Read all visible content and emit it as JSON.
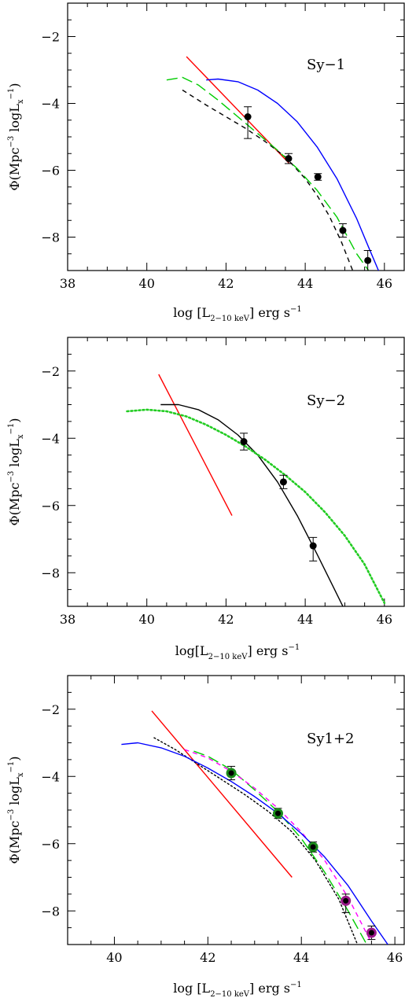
{
  "chart_data": [
    {
      "type": "line",
      "panel_label": "Sy−1",
      "xlabel": {
        "pre": "log [L",
        "sub": "2−10 keV",
        "post": "] erg s",
        "sup": "−1"
      },
      "ylabel": {
        "a": "Φ(Mpc",
        "a_sup": "−3",
        "b": " logL",
        "b_sub": "x",
        "c_sup": "−1",
        "d": ")"
      },
      "xlim": [
        38,
        46.5
      ],
      "ylim": [
        -9,
        -1
      ],
      "xticks": [
        38,
        40,
        42,
        44,
        46
      ],
      "xtick_labels": [
        "38",
        "40",
        "42",
        "44",
        "46"
      ],
      "yticks": [
        -2,
        -4,
        -6,
        -8
      ],
      "ytick_labels": [
        "−2",
        "−4",
        "−6",
        "−8"
      ],
      "data_points": [
        {
          "x": 42.55,
          "y": -4.4,
          "err_up": 0.3,
          "err_down": 0.65
        },
        {
          "x": 43.58,
          "y": -5.65,
          "err_up": 0.15,
          "err_down": 0.15
        },
        {
          "x": 44.32,
          "y": -6.2,
          "err_up": 0.1,
          "err_down": 0.1
        },
        {
          "x": 44.95,
          "y": -7.8,
          "err_up": 0.2,
          "err_down": 0.2
        },
        {
          "x": 45.58,
          "y": -8.7,
          "err_up": 0.3,
          "err_down": 0.3
        }
      ],
      "curves": [
        {
          "color": "#ff0000",
          "style": "solid",
          "x": [
            41.0,
            43.6
          ],
          "y": [
            -2.6,
            -5.8
          ]
        },
        {
          "color": "#000000",
          "style": "dashed",
          "x": [
            40.9,
            41.5,
            42.0,
            42.5,
            43.0,
            43.5,
            44.0,
            44.3,
            44.6,
            44.9,
            45.2
          ],
          "y": [
            -3.6,
            -4.05,
            -4.4,
            -4.75,
            -5.15,
            -5.6,
            -6.25,
            -6.75,
            -7.35,
            -8.1,
            -9.0
          ]
        },
        {
          "color": "#00cc00",
          "style": "longdash",
          "x": [
            40.5,
            40.9,
            41.3,
            41.8,
            42.3,
            42.8,
            43.3,
            43.8,
            44.3,
            44.8,
            45.3,
            45.6
          ],
          "y": [
            -3.3,
            -3.22,
            -3.45,
            -3.9,
            -4.4,
            -4.9,
            -5.4,
            -5.95,
            -6.6,
            -7.4,
            -8.5,
            -9.0
          ]
        },
        {
          "color": "#0000ff",
          "style": "solid",
          "x": [
            41.5,
            41.8,
            42.3,
            42.8,
            43.3,
            43.8,
            44.3,
            44.8,
            45.3,
            45.6,
            45.85
          ],
          "y": [
            -3.3,
            -3.27,
            -3.35,
            -3.6,
            -4.0,
            -4.55,
            -5.3,
            -6.25,
            -7.45,
            -8.3,
            -9.0
          ]
        }
      ]
    },
    {
      "type": "line",
      "panel_label": "Sy−2",
      "xlabel": {
        "pre": "log[L",
        "sub": "2−10 keV",
        "post": "] erg s",
        "sup": "−1"
      },
      "ylabel": {
        "a": "Φ(Mpc",
        "a_sup": "−3",
        "b": " logL",
        "b_sub": "x",
        "c_sup": "−1",
        "d": ")"
      },
      "xlim": [
        38,
        46.5
      ],
      "ylim": [
        -9,
        -1
      ],
      "xticks": [
        38,
        40,
        42,
        44,
        46
      ],
      "xtick_labels": [
        "38",
        "40",
        "42",
        "44",
        "46"
      ],
      "yticks": [
        -2,
        -4,
        -6,
        -8
      ],
      "ytick_labels": [
        "−2",
        "−4",
        "−6",
        "−8"
      ],
      "data_points": [
        {
          "x": 42.45,
          "y": -4.1,
          "err_up": 0.25,
          "err_down": 0.25
        },
        {
          "x": 43.45,
          "y": -5.3,
          "err_up": 0.2,
          "err_down": 0.2
        },
        {
          "x": 44.2,
          "y": -7.2,
          "err_up": 0.25,
          "err_down": 0.45
        }
      ],
      "curves": [
        {
          "color": "#ff0000",
          "style": "solid",
          "x": [
            40.3,
            42.15
          ],
          "y": [
            -2.1,
            -6.3
          ]
        },
        {
          "color": "#000000",
          "style": "solid",
          "x": [
            40.35,
            40.8,
            41.3,
            41.8,
            42.3,
            42.8,
            43.3,
            43.8,
            44.3,
            44.7,
            44.95
          ],
          "y": [
            -3.0,
            -3.0,
            -3.15,
            -3.45,
            -3.9,
            -4.5,
            -5.3,
            -6.3,
            -7.45,
            -8.4,
            -9.0
          ]
        },
        {
          "color": "#22cc22",
          "style": "dotted",
          "x": [
            39.5,
            40.0,
            40.5,
            41.0,
            41.5,
            42.0,
            42.5,
            43.0,
            43.5,
            44.0,
            44.5,
            45.0,
            45.5,
            46.0
          ],
          "y": [
            -3.2,
            -3.15,
            -3.2,
            -3.35,
            -3.6,
            -3.9,
            -4.25,
            -4.65,
            -5.1,
            -5.6,
            -6.2,
            -6.9,
            -7.75,
            -8.9
          ]
        }
      ]
    },
    {
      "type": "line",
      "panel_label": "Sy1+2",
      "xlabel": {
        "pre": "log [L",
        "sub": "2−10 keV",
        "post": "] erg s",
        "sup": "−1"
      },
      "ylabel": {
        "a": "Φ(Mpc",
        "a_sup": "−3",
        "b": " logL",
        "b_sub": "x",
        "c_sup": "−1",
        "d": ")"
      },
      "xlim": [
        39,
        46.2
      ],
      "ylim": [
        -9,
        -1
      ],
      "xticks": [
        40,
        42,
        44,
        46
      ],
      "xtick_labels": [
        "40",
        "42",
        "44",
        "46"
      ],
      "yticks": [
        -2,
        -4,
        -6,
        -8
      ],
      "ytick_labels": [
        "−2",
        "−4",
        "−6",
        "−8"
      ],
      "data_points": [
        {
          "x": 42.5,
          "y": -3.9,
          "err_up": 0.2,
          "err_down": 0.2,
          "fill": "#1a8a1a"
        },
        {
          "x": 43.5,
          "y": -5.1,
          "err_up": 0.15,
          "err_down": 0.15,
          "fill": "#1a8a1a"
        },
        {
          "x": 44.25,
          "y": -6.1,
          "err_up": 0.15,
          "err_down": 0.15,
          "fill": "#1a8a1a"
        },
        {
          "x": 44.95,
          "y": -7.7,
          "err_up": 0.2,
          "err_down": 0.35,
          "fill": "#9b1a8a"
        },
        {
          "x": 45.5,
          "y": -8.65,
          "err_up": 0.2,
          "err_down": 0.2,
          "fill": "#9b1a8a"
        }
      ],
      "curves": [
        {
          "color": "#ff0000",
          "style": "solid",
          "x": [
            40.8,
            43.8
          ],
          "y": [
            -2.05,
            -7.0
          ]
        },
        {
          "color": "#000000",
          "style": "dotted",
          "x": [
            40.85,
            41.3,
            41.8,
            42.3,
            42.8,
            43.3,
            43.8,
            44.3,
            44.8,
            45.2
          ],
          "y": [
            -2.85,
            -3.2,
            -3.65,
            -4.1,
            -4.55,
            -5.05,
            -5.65,
            -6.5,
            -7.65,
            -9.0
          ]
        },
        {
          "color": "#00cc00",
          "style": "longdash",
          "x": [
            41.7,
            42.0,
            42.5,
            43.0,
            43.5,
            44.0,
            44.5,
            45.0,
            45.4
          ],
          "y": [
            -3.25,
            -3.4,
            -3.8,
            -4.4,
            -5.05,
            -5.85,
            -6.85,
            -8.0,
            -9.0
          ]
        },
        {
          "color": "#ff00ff",
          "style": "dashed",
          "x": [
            41.5,
            42.0,
            42.5,
            43.0,
            43.5,
            44.0,
            44.5,
            45.0,
            45.5
          ],
          "y": [
            -3.2,
            -3.45,
            -3.85,
            -4.35,
            -4.95,
            -5.65,
            -6.5,
            -7.6,
            -8.95
          ]
        },
        {
          "color": "#0000ff",
          "style": "solid",
          "x": [
            40.15,
            40.5,
            41.0,
            41.5,
            42.0,
            42.5,
            43.0,
            43.5,
            44.0,
            44.5,
            45.0,
            45.5,
            45.85
          ],
          "y": [
            -3.05,
            -3.0,
            -3.15,
            -3.4,
            -3.75,
            -4.15,
            -4.6,
            -5.1,
            -5.7,
            -6.4,
            -7.25,
            -8.3,
            -9.0
          ]
        }
      ]
    }
  ]
}
